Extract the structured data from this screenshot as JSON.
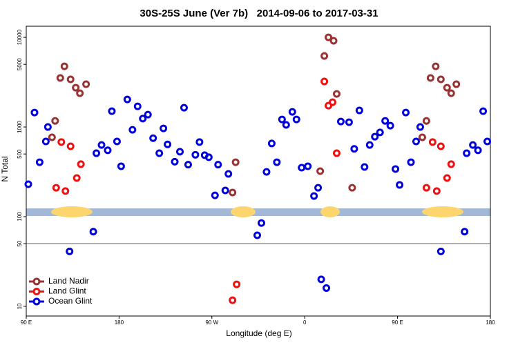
{
  "chart_data": {
    "type": "scatter",
    "title": "30S-25S June (Ver 7b)   2014-09-06 to 2017-03-31",
    "x_label": "Longitude (deg E)",
    "y_label": "N Total",
    "xlim": [
      90,
      540
    ],
    "ylim": [
      7.8,
      13300
    ],
    "log_y": true,
    "xticks": [
      {
        "value": 90,
        "label": "90 E"
      },
      180,
      {
        "value": 270,
        "label": "90 W"
      },
      {
        "value": 360,
        "label": "0"
      },
      {
        "value": 450,
        "label": "90 E"
      },
      {
        "value": 540,
        "label": "180"
      }
    ],
    "yticks": [
      10,
      50,
      100,
      500,
      1000,
      5000,
      10000
    ],
    "hline": 50,
    "legend": "bottom-left",
    "series": [
      {
        "name": "Land Nadir",
        "color": "#993333",
        "x": [
          115,
          118,
          123,
          127,
          133,
          138,
          142,
          148,
          290,
          293,
          375,
          379,
          383,
          388,
          391,
          406,
          474,
          478,
          482,
          487,
          492,
          498,
          502,
          507
        ],
        "values": [
          767,
          1170,
          3520,
          4750,
          3400,
          2745,
          2380,
          3000,
          186,
          405,
          322,
          6200,
          10000,
          9150,
          2340,
          210,
          767,
          1170,
          3520,
          4750,
          3400,
          2745,
          2380,
          3000
        ]
      },
      {
        "name": "Land Glint",
        "color": "#ee1111",
        "x": [
          119,
          124,
          128,
          133,
          139,
          143,
          290,
          294,
          379,
          383,
          387,
          391,
          478,
          484,
          488,
          492,
          498,
          502
        ],
        "values": [
          210,
          680,
          193,
          610,
          270,
          385,
          11.7,
          17.6,
          3220,
          1730,
          1890,
          510,
          210,
          680,
          193,
          610,
          270,
          385
        ]
      },
      {
        "name": "Ocean Glint",
        "color": "#0000dd",
        "x": [
          92,
          98,
          103,
          109,
          111,
          132,
          155,
          158,
          163,
          169,
          173,
          178,
          182,
          188,
          193,
          198,
          203,
          208,
          213,
          219,
          223,
          227,
          234,
          239,
          243,
          247,
          254,
          258,
          263,
          267,
          273,
          276,
          283,
          286,
          314,
          318,
          323,
          328,
          333,
          338,
          342,
          348,
          352,
          357,
          363,
          369,
          373,
          376,
          381,
          395,
          403,
          408,
          413,
          418,
          423,
          428,
          433,
          438,
          443,
          448,
          452,
          458,
          463,
          468,
          472,
          492,
          515,
          517,
          523,
          528,
          533,
          537
        ],
        "values": [
          230,
          1450,
          405,
          690,
          1000,
          41,
          68,
          510,
          630,
          550,
          1500,
          690,
          365,
          2030,
          930,
          1700,
          1240,
          1375,
          750,
          510,
          965,
          640,
          410,
          530,
          1640,
          380,
          490,
          680,
          485,
          460,
          173,
          380,
          196,
          300,
          62,
          85,
          316,
          655,
          405,
          1215,
          1055,
          1475,
          1215,
          352,
          365,
          170,
          210,
          20,
          16,
          1150,
          1130,
          570,
          1530,
          358,
          630,
          780,
          870,
          1170,
          1035,
          340,
          226,
          1450,
          405,
          690,
          1000,
          41,
          68,
          510,
          630,
          550,
          1500,
          690
        ]
      }
    ]
  }
}
